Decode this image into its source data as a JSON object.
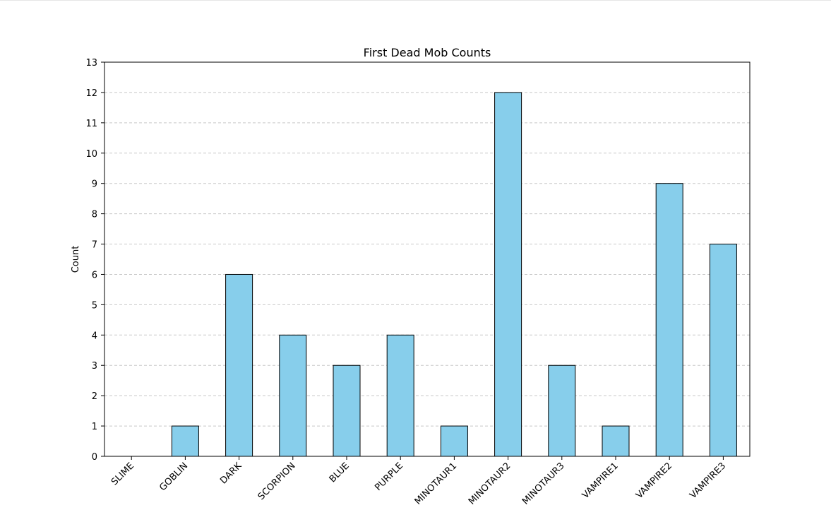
{
  "chart_data": {
    "type": "bar",
    "title": "First Dead Mob Counts",
    "xlabel": "",
    "ylabel": "Count",
    "categories": [
      "SLIME",
      "GOBLIN",
      "DARK",
      "SCORPION",
      "BLUE",
      "PURPLE",
      "MINOTAUR1",
      "MINOTAUR2",
      "MINOTAUR3",
      "VAMPIRE1",
      "VAMPIRE2",
      "VAMPIRE3"
    ],
    "values": [
      0,
      1,
      6,
      4,
      3,
      4,
      1,
      12,
      3,
      1,
      9,
      7
    ],
    "ylim": [
      0,
      13
    ],
    "yticks": [
      0,
      1,
      2,
      3,
      4,
      5,
      6,
      7,
      8,
      9,
      10,
      11,
      12,
      13
    ],
    "grid": "y-dashed",
    "bar_color": "#87ceeb",
    "edge_color": "#000000",
    "grid_color": "#c8c8c8"
  }
}
